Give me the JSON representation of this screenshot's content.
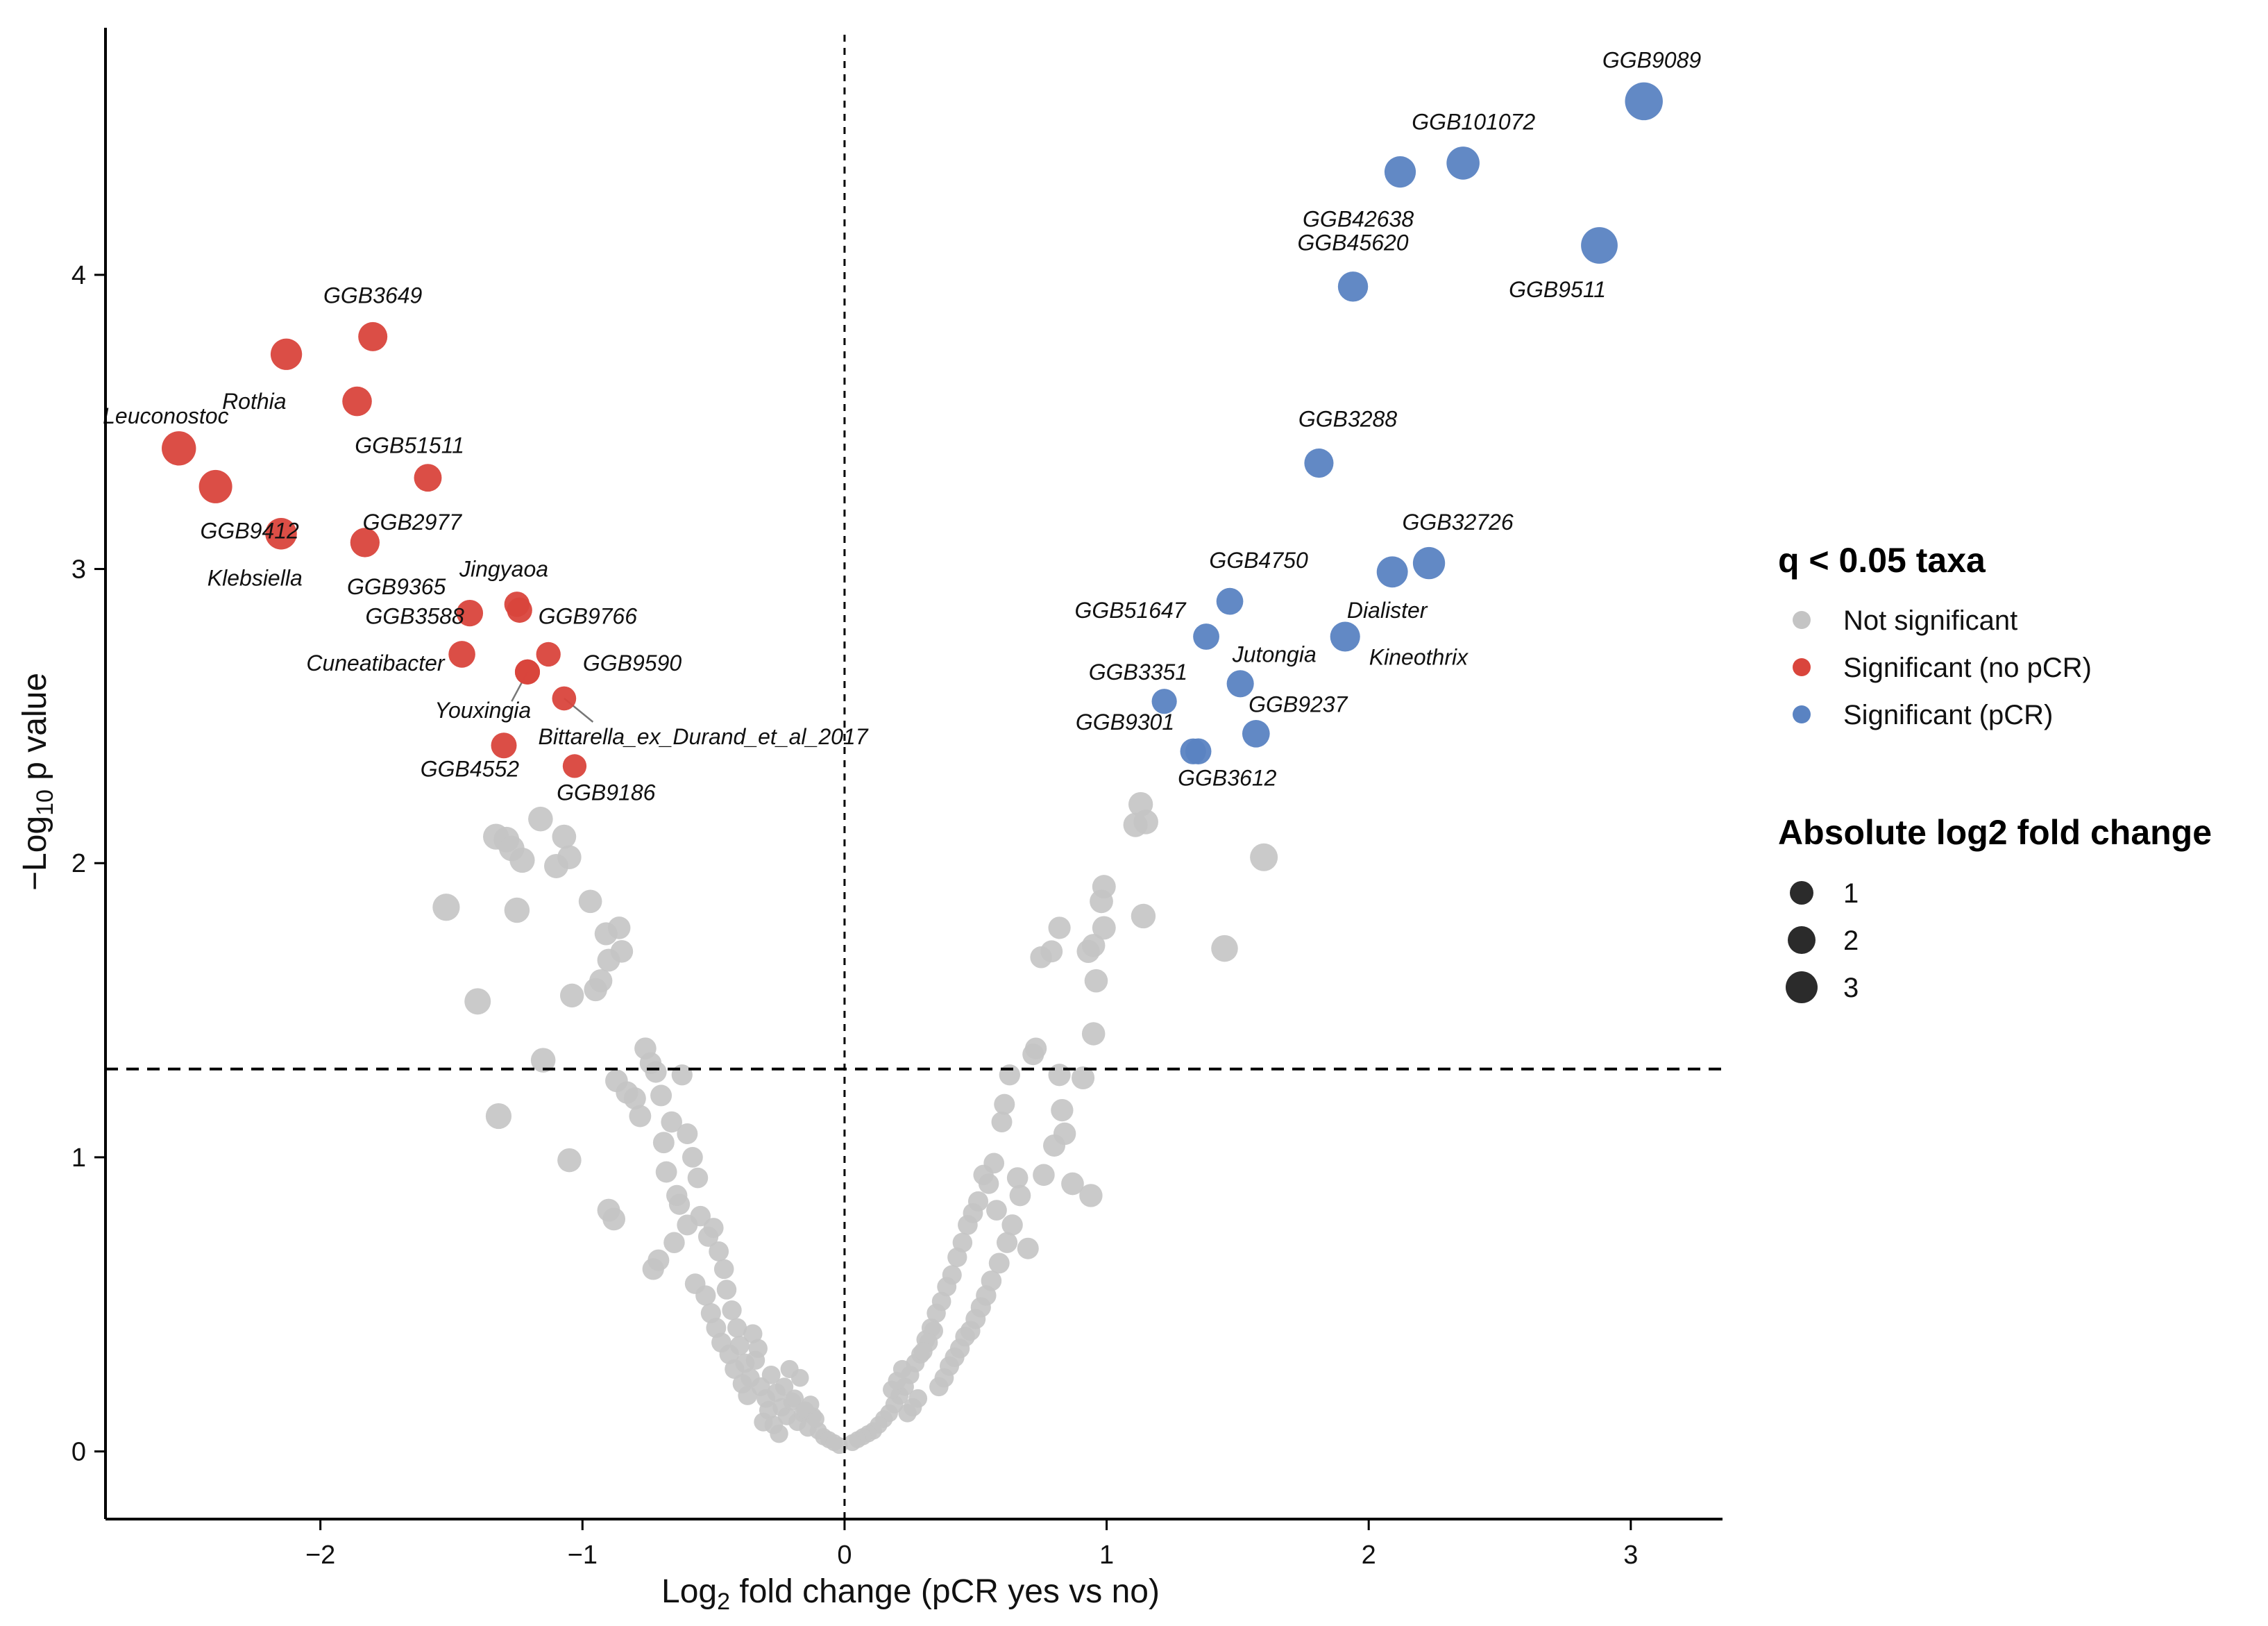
{
  "chart_data": {
    "type": "scatter",
    "title": "",
    "xlabel_main": "Log",
    "xlabel_sub": "2",
    "xlabel_rest": " fold change (pCR yes vs no)",
    "ylabel_prefix": "−Log",
    "ylabel_sub": "10",
    "ylabel_rest": " p value",
    "xlim": [
      -2.82,
      3.35
    ],
    "ylim": [
      -0.23,
      4.84
    ],
    "xticks": [
      -2,
      -1,
      0,
      1,
      2,
      3
    ],
    "xtick_labels": [
      "−2",
      "−1",
      "0",
      "1",
      "2",
      "3"
    ],
    "yticks": [
      0,
      1,
      2,
      3,
      4
    ],
    "ytick_labels": [
      "0",
      "1",
      "2",
      "3",
      "4"
    ],
    "reference_lines": {
      "vertical_x": 0,
      "horizontal_y": 1.3
    },
    "colors": {
      "not_significant": "#c4c4c4",
      "no_pcr": "#d9453c",
      "pcr": "#5a83c2",
      "axis": "#000000"
    },
    "legend_color": {
      "title": "q < 0.05 taxa",
      "entries": [
        {
          "label": "Not significant",
          "color": "#c4c4c4"
        },
        {
          "label": "Significant (no pCR)",
          "color": "#d9453c"
        },
        {
          "label": "Significant (pCR)",
          "color": "#5a83c2"
        }
      ]
    },
    "legend_size": {
      "title": "Absolute log2 fold change",
      "entries": [
        {
          "label": "1",
          "value": 1
        },
        {
          "label": "2",
          "value": 2
        },
        {
          "label": "3",
          "value": 3
        }
      ]
    },
    "series_no_pcr": [
      {
        "name": "GGB3649",
        "x": -1.8,
        "y": 3.79,
        "lx": -1.8,
        "ly": 3.93,
        "anchor": "middle"
      },
      {
        "name": "Rothia",
        "x": -2.13,
        "y": 3.73,
        "lx": -2.13,
        "ly": 3.57,
        "anchor": "end"
      },
      {
        "name": "GGB51511",
        "x": -1.86,
        "y": 3.57,
        "lx": -1.66,
        "ly": 3.42,
        "anchor": "middle"
      },
      {
        "name": "Leuconostoc",
        "x": -2.54,
        "y": 3.41,
        "lx": -2.59,
        "ly": 3.52,
        "anchor": "middle"
      },
      {
        "name": "GGB2977",
        "x": -1.59,
        "y": 3.31,
        "lx": -1.65,
        "ly": 3.16,
        "anchor": "middle"
      },
      {
        "name": "GGB9412",
        "x": -2.4,
        "y": 3.28,
        "lx": -2.27,
        "ly": 3.13,
        "anchor": "middle"
      },
      {
        "name": "Klebsiella",
        "x": -2.15,
        "y": 3.12,
        "lx": -2.25,
        "ly": 2.97,
        "anchor": "middle"
      },
      {
        "name": "GGB9365",
        "x": -1.83,
        "y": 3.09,
        "lx": -1.71,
        "ly": 2.94,
        "anchor": "middle"
      },
      {
        "name": "Jingyaoa",
        "x": -1.25,
        "y": 2.88,
        "lx": -1.3,
        "ly": 3.0,
        "anchor": "middle"
      },
      {
        "name": "GGB3588",
        "x": -1.43,
        "y": 2.85,
        "lx": -1.64,
        "ly": 2.84,
        "anchor": "middle"
      },
      {
        "name": "GGB9766",
        "x": -1.13,
        "y": 2.71,
        "lx": -0.98,
        "ly": 2.84,
        "anchor": "middle"
      },
      {
        "name": "Cuneatibacter",
        "x": -1.46,
        "y": 2.71,
        "lx": -1.79,
        "ly": 2.68,
        "anchor": "middle"
      },
      {
        "name": "GGB9590",
        "x": -1.21,
        "y": 2.65,
        "lx": -0.81,
        "ly": 2.68,
        "anchor": "middle"
      },
      {
        "name": "Youxingia",
        "x": -1.21,
        "y": 2.65,
        "lx": -1.38,
        "ly": 2.52,
        "anchor": "middle"
      },
      {
        "name": "Bittarella_ex_Durand_et_al_2017",
        "x": -1.07,
        "y": 2.56,
        "lx": -0.54,
        "ly": 2.43,
        "anchor": "middle"
      },
      {
        "name": "GGB4552",
        "x": -1.3,
        "y": 2.4,
        "lx": -1.43,
        "ly": 2.32,
        "anchor": "middle"
      },
      {
        "name": "GGB9186",
        "x": -1.03,
        "y": 2.33,
        "lx": -0.91,
        "ly": 2.24,
        "anchor": "middle"
      },
      {
        "name": "",
        "x": -1.24,
        "y": 2.86,
        "lx": 0,
        "ly": 0,
        "anchor": "middle"
      }
    ],
    "series_pcr": [
      {
        "name": "GGB9089",
        "x": 3.05,
        "y": 4.59,
        "lx": 3.08,
        "ly": 4.73,
        "anchor": "middle"
      },
      {
        "name": "GGB101072",
        "x": 2.36,
        "y": 4.38,
        "lx": 2.4,
        "ly": 4.52,
        "anchor": "middle"
      },
      {
        "name": "GGB42638",
        "x": 2.12,
        "y": 4.35,
        "lx": 1.96,
        "ly": 4.19,
        "anchor": "middle"
      },
      {
        "name": "GGB9511",
        "x": 2.88,
        "y": 4.1,
        "lx": 2.72,
        "ly": 3.95,
        "anchor": "middle"
      },
      {
        "name": "GGB45620",
        "x": 1.94,
        "y": 3.96,
        "lx": 1.94,
        "ly": 4.11,
        "anchor": "middle"
      },
      {
        "name": "GGB3288",
        "x": 1.81,
        "y": 3.36,
        "lx": 1.92,
        "ly": 3.51,
        "anchor": "middle"
      },
      {
        "name": "GGB32726",
        "x": 2.23,
        "y": 3.02,
        "lx": 2.34,
        "ly": 3.16,
        "anchor": "middle"
      },
      {
        "name": "Dialister",
        "x": 2.09,
        "y": 2.99,
        "lx": 2.07,
        "ly": 2.86,
        "anchor": "middle"
      },
      {
        "name": "GGB4750",
        "x": 1.47,
        "y": 2.89,
        "lx": 1.58,
        "ly": 3.03,
        "anchor": "middle"
      },
      {
        "name": "GGB51647",
        "x": 1.38,
        "y": 2.77,
        "lx": 1.09,
        "ly": 2.86,
        "anchor": "middle"
      },
      {
        "name": "Kineothrix",
        "x": 1.91,
        "y": 2.77,
        "lx": 2.19,
        "ly": 2.7,
        "anchor": "middle"
      },
      {
        "name": "Jutongia",
        "x": 1.51,
        "y": 2.61,
        "lx": 1.64,
        "ly": 2.71,
        "anchor": "middle"
      },
      {
        "name": "GGB3351",
        "x": 1.22,
        "y": 2.55,
        "lx": 1.12,
        "ly": 2.65,
        "anchor": "middle"
      },
      {
        "name": "GGB9237",
        "x": 1.57,
        "y": 2.44,
        "lx": 1.73,
        "ly": 2.54,
        "anchor": "middle"
      },
      {
        "name": "GGB9301",
        "x": 1.33,
        "y": 2.38,
        "lx": 1.07,
        "ly": 2.48,
        "anchor": "middle"
      },
      {
        "name": "GGB3612",
        "x": 1.35,
        "y": 2.38,
        "lx": 1.46,
        "ly": 2.29,
        "anchor": "middle"
      }
    ],
    "series_not_significant": [
      [
        -1.52,
        1.85
      ],
      [
        -1.4,
        1.53
      ],
      [
        -1.33,
        2.09
      ],
      [
        -1.29,
        2.08
      ],
      [
        -1.27,
        2.05
      ],
      [
        -1.25,
        1.84
      ],
      [
        -1.23,
        2.01
      ],
      [
        -1.16,
        2.15
      ],
      [
        -1.15,
        1.33
      ],
      [
        -1.1,
        1.99
      ],
      [
        -1.07,
        2.09
      ],
      [
        -1.05,
        2.02
      ],
      [
        -1.04,
        1.55
      ],
      [
        -1.32,
        1.14
      ],
      [
        -1.05,
        0.99
      ],
      [
        -0.97,
        1.87
      ],
      [
        -0.95,
        1.57
      ],
      [
        -0.93,
        1.6
      ],
      [
        -0.91,
        1.76
      ],
      [
        -0.9,
        1.67
      ],
      [
        -0.87,
        1.26
      ],
      [
        -0.86,
        1.78
      ],
      [
        -0.85,
        1.7
      ],
      [
        -0.83,
        1.22
      ],
      [
        -0.8,
        1.2
      ],
      [
        -0.78,
        1.14
      ],
      [
        -0.76,
        1.37
      ],
      [
        -0.74,
        1.32
      ],
      [
        -0.72,
        1.29
      ],
      [
        -0.7,
        1.21
      ],
      [
        -0.69,
        1.05
      ],
      [
        -0.68,
        0.95
      ],
      [
        -0.66,
        1.12
      ],
      [
        -0.64,
        0.87
      ],
      [
        -0.62,
        1.28
      ],
      [
        -0.6,
        1.08
      ],
      [
        -0.58,
        1.0
      ],
      [
        -0.56,
        0.93
      ],
      [
        -0.55,
        0.8
      ],
      [
        -0.52,
        0.73
      ],
      [
        -0.5,
        0.76
      ],
      [
        -0.48,
        0.68
      ],
      [
        -0.46,
        0.62
      ],
      [
        -0.45,
        0.55
      ],
      [
        -0.43,
        0.48
      ],
      [
        -0.41,
        0.42
      ],
      [
        -0.4,
        0.36
      ],
      [
        -0.38,
        0.3
      ],
      [
        -0.36,
        0.25
      ],
      [
        -0.34,
        0.31
      ],
      [
        -0.32,
        0.22
      ],
      [
        -0.3,
        0.18
      ],
      [
        -0.28,
        0.26
      ],
      [
        -0.26,
        0.2
      ],
      [
        -0.24,
        0.15
      ],
      [
        -0.22,
        0.12
      ],
      [
        -0.2,
        0.17
      ],
      [
        -0.18,
        0.1
      ],
      [
        -0.16,
        0.13
      ],
      [
        -0.14,
        0.08
      ],
      [
        -0.12,
        0.12
      ],
      [
        -0.1,
        0.07
      ],
      [
        -0.08,
        0.05
      ],
      [
        -0.06,
        0.04
      ],
      [
        -0.04,
        0.03
      ],
      [
        -0.02,
        0.02
      ],
      [
        -0.9,
        0.82
      ],
      [
        -0.88,
        0.79
      ],
      [
        -0.73,
        0.62
      ],
      [
        -0.71,
        0.65
      ],
      [
        -0.65,
        0.71
      ],
      [
        -0.63,
        0.84
      ],
      [
        -0.6,
        0.77
      ],
      [
        -0.57,
        0.57
      ],
      [
        -0.53,
        0.53
      ],
      [
        -0.51,
        0.47
      ],
      [
        -0.49,
        0.42
      ],
      [
        -0.47,
        0.37
      ],
      [
        -0.44,
        0.33
      ],
      [
        -0.42,
        0.28
      ],
      [
        -0.39,
        0.23
      ],
      [
        -0.37,
        0.19
      ],
      [
        -0.35,
        0.4
      ],
      [
        -0.33,
        0.35
      ],
      [
        -0.31,
        0.1
      ],
      [
        -0.29,
        0.14
      ],
      [
        -0.27,
        0.09
      ],
      [
        -0.25,
        0.06
      ],
      [
        -0.23,
        0.22
      ],
      [
        -0.21,
        0.28
      ],
      [
        -0.19,
        0.18
      ],
      [
        -0.17,
        0.25
      ],
      [
        -0.15,
        0.14
      ],
      [
        -0.13,
        0.16
      ],
      [
        -0.11,
        0.11
      ],
      [
        1.13,
        2.2
      ],
      [
        1.11,
        2.13
      ],
      [
        1.15,
        2.14
      ],
      [
        1.6,
        2.02
      ],
      [
        0.99,
        1.92
      ],
      [
        0.98,
        1.87
      ],
      [
        0.99,
        1.78
      ],
      [
        1.14,
        1.82
      ],
      [
        1.45,
        1.71
      ],
      [
        0.93,
        1.7
      ],
      [
        0.95,
        1.72
      ],
      [
        0.96,
        1.6
      ],
      [
        0.82,
        1.78
      ],
      [
        0.79,
        1.7
      ],
      [
        0.75,
        1.68
      ],
      [
        0.73,
        1.37
      ],
      [
        0.72,
        1.35
      ],
      [
        0.95,
        1.42
      ],
      [
        0.91,
        1.27
      ],
      [
        0.82,
        1.28
      ],
      [
        0.83,
        1.16
      ],
      [
        0.84,
        1.08
      ],
      [
        0.8,
        1.04
      ],
      [
        0.63,
        1.28
      ],
      [
        0.61,
        1.18
      ],
      [
        0.6,
        1.12
      ],
      [
        0.57,
        0.98
      ],
      [
        0.53,
        0.94
      ],
      [
        0.55,
        0.91
      ],
      [
        0.51,
        0.85
      ],
      [
        0.49,
        0.81
      ],
      [
        0.47,
        0.77
      ],
      [
        0.45,
        0.71
      ],
      [
        0.43,
        0.66
      ],
      [
        0.41,
        0.6
      ],
      [
        0.39,
        0.56
      ],
      [
        0.37,
        0.51
      ],
      [
        0.35,
        0.47
      ],
      [
        0.33,
        0.42
      ],
      [
        0.31,
        0.38
      ],
      [
        0.29,
        0.33
      ],
      [
        0.27,
        0.3
      ],
      [
        0.25,
        0.26
      ],
      [
        0.23,
        0.22
      ],
      [
        0.21,
        0.19
      ],
      [
        0.19,
        0.16
      ],
      [
        0.17,
        0.13
      ],
      [
        0.15,
        0.11
      ],
      [
        0.13,
        0.09
      ],
      [
        0.11,
        0.07
      ],
      [
        0.09,
        0.06
      ],
      [
        0.07,
        0.05
      ],
      [
        0.05,
        0.04
      ],
      [
        0.03,
        0.03
      ],
      [
        0.67,
        0.87
      ],
      [
        0.64,
        0.77
      ],
      [
        0.62,
        0.71
      ],
      [
        0.59,
        0.64
      ],
      [
        0.56,
        0.58
      ],
      [
        0.54,
        0.53
      ],
      [
        0.52,
        0.49
      ],
      [
        0.5,
        0.45
      ],
      [
        0.48,
        0.41
      ],
      [
        0.46,
        0.39
      ],
      [
        0.44,
        0.35
      ],
      [
        0.42,
        0.32
      ],
      [
        0.4,
        0.29
      ],
      [
        0.38,
        0.25
      ],
      [
        0.36,
        0.22
      ],
      [
        0.34,
        0.41
      ],
      [
        0.32,
        0.37
      ],
      [
        0.3,
        0.34
      ],
      [
        0.28,
        0.18
      ],
      [
        0.26,
        0.15
      ],
      [
        0.24,
        0.13
      ],
      [
        0.22,
        0.28
      ],
      [
        0.2,
        0.24
      ],
      [
        0.18,
        0.21
      ],
      [
        0.87,
        0.91
      ],
      [
        0.76,
        0.94
      ],
      [
        0.7,
        0.69
      ],
      [
        0.66,
        0.93
      ],
      [
        0.94,
        0.87
      ],
      [
        0.58,
        0.82
      ]
    ]
  }
}
